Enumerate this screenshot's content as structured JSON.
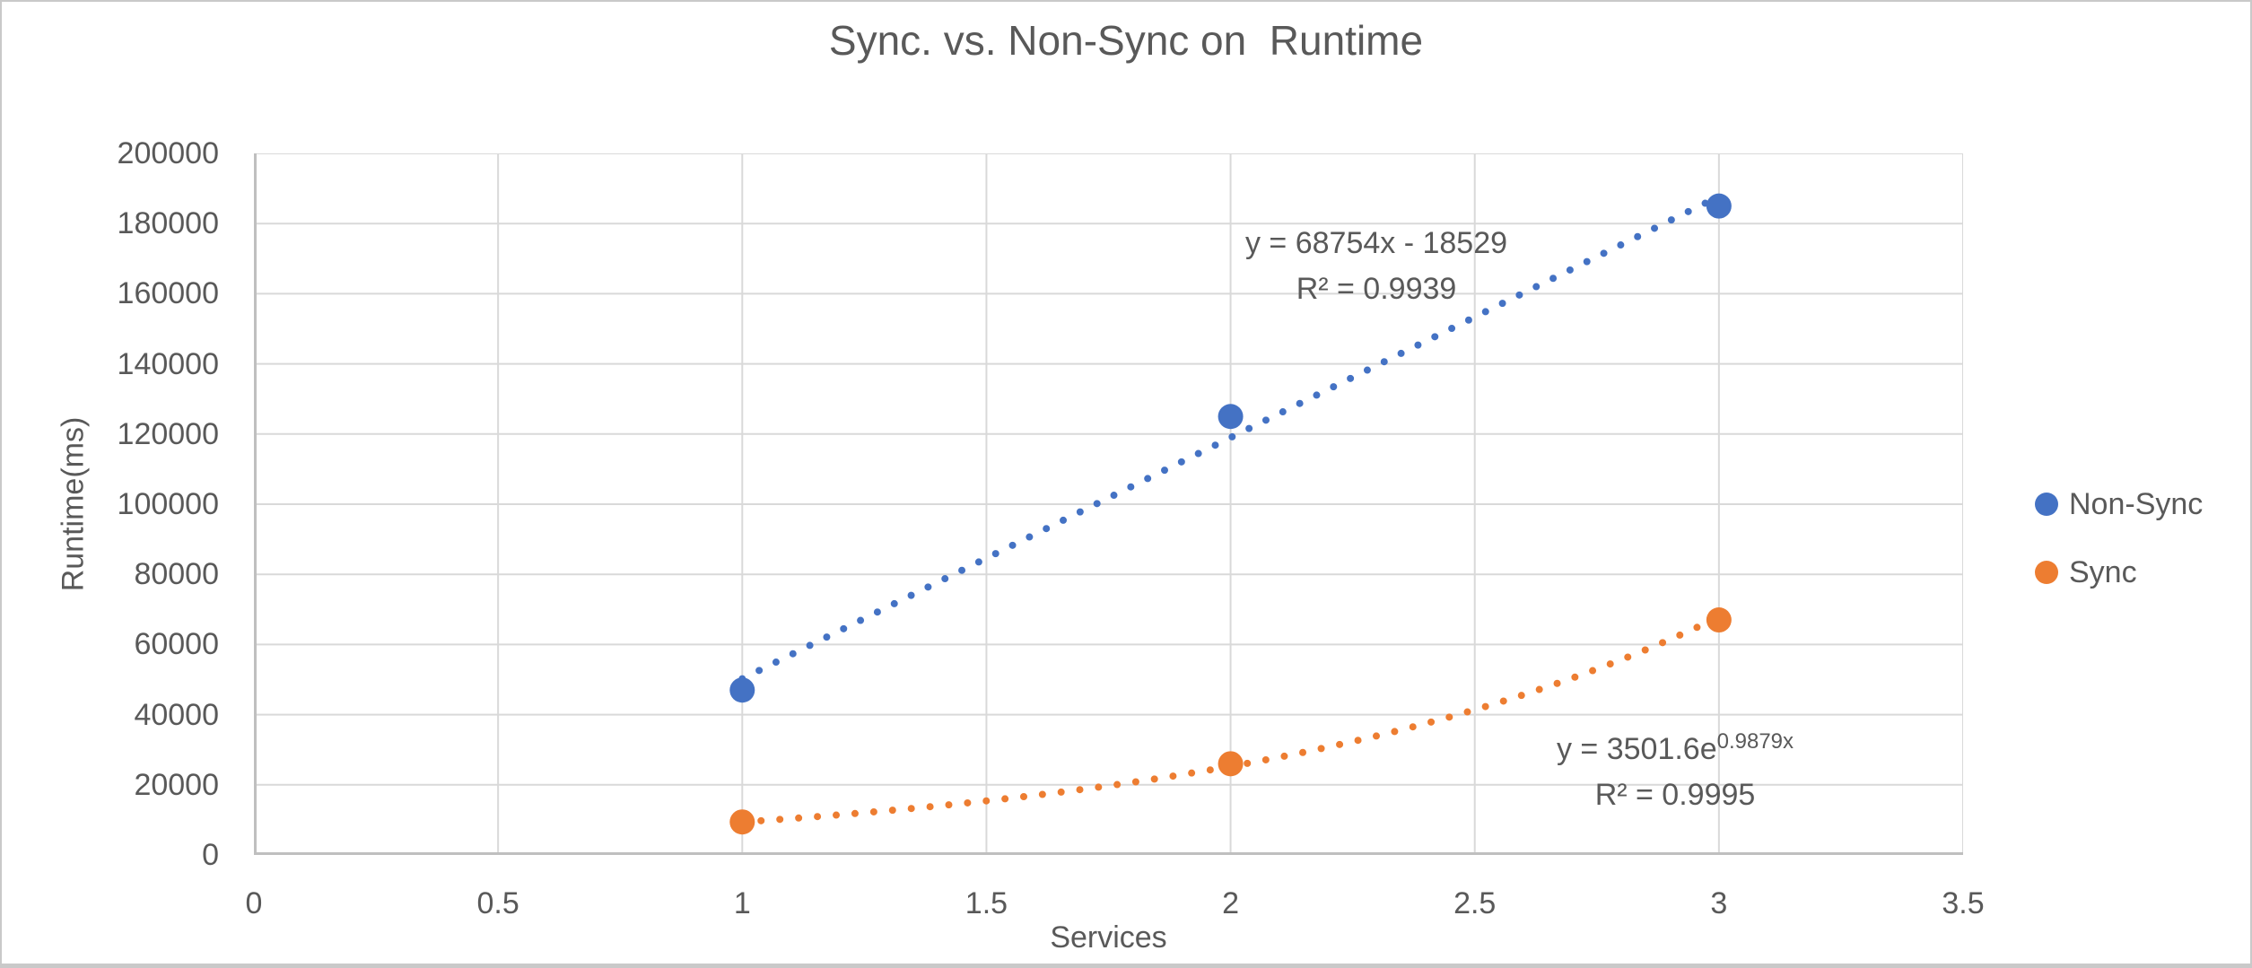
{
  "title": "Sync. vs. Non-Sync on  Runtime",
  "chart_data": {
    "type": "scatter",
    "title": "Sync. vs. Non-Sync on  Runtime",
    "xlabel": "Services",
    "ylabel": "Runtime(ms)",
    "xlim": [
      0,
      3.5
    ],
    "ylim": [
      0,
      200000
    ],
    "xtick_step": 0.5,
    "ytick_step": 20000,
    "x_ticks": [
      "0",
      "0.5",
      "1",
      "1.5",
      "2",
      "2.5",
      "3",
      "3.5"
    ],
    "y_ticks": [
      "0",
      "20000",
      "40000",
      "60000",
      "80000",
      "100000",
      "120000",
      "140000",
      "160000",
      "180000",
      "200000"
    ],
    "grid": true,
    "grid_color": "#d9d9d9",
    "axis_color": "#bfbfbf",
    "legend_position": "right",
    "series": [
      {
        "name": "Non-Sync",
        "color": "#4472C4",
        "x": [
          1,
          2,
          3
        ],
        "y": [
          47000,
          125000,
          185000
        ],
        "trendline": {
          "type": "linear",
          "style": "dotted",
          "slope": 68754,
          "intercept": -18529,
          "x_range": [
            1,
            3
          ],
          "equation": "y = 68754x - 18529",
          "r2_label": "R² = 0.9939"
        }
      },
      {
        "name": "Sync",
        "color": "#ED7D31",
        "x": [
          1,
          2,
          3
        ],
        "y": [
          9400,
          26000,
          67000
        ],
        "trendline": {
          "type": "exponential",
          "style": "dotted",
          "a": 3501.6,
          "b": 0.9879,
          "x_range": [
            1,
            3
          ],
          "equation_base": "y = 3501.6e",
          "equation_exp": "0.9879x",
          "r2_label": "R² = 0.9995"
        }
      }
    ]
  },
  "legend": {
    "items": [
      {
        "label": "Non-Sync",
        "color": "#4472C4"
      },
      {
        "label": "Sync",
        "color": "#ED7D31"
      }
    ]
  }
}
